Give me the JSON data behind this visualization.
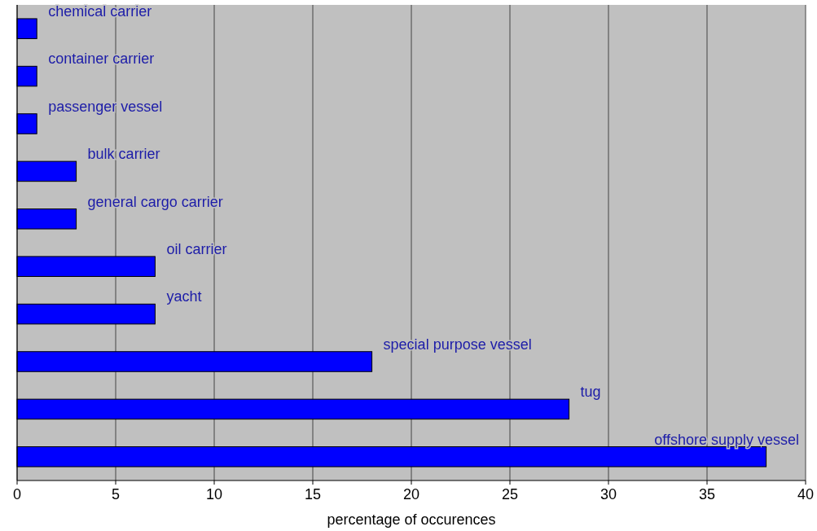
{
  "chart_data": {
    "type": "bar",
    "orientation": "horizontal",
    "xlabel": "percentage of occurences",
    "categories": [
      "chemical carrier",
      "container carrier",
      "passenger vessel",
      "bulk carrier",
      "general cargo carrier",
      "oil carrier",
      "yacht",
      "special purpose vessel",
      "tug",
      "offshore supply vessel"
    ],
    "values": [
      1,
      1,
      1,
      3,
      3,
      7,
      7,
      18,
      28,
      38
    ],
    "color": "#0000ff",
    "xlim": [
      0,
      40
    ],
    "xticks": [
      0,
      5,
      10,
      15,
      20,
      25,
      30,
      35,
      40
    ],
    "grid": "x"
  }
}
